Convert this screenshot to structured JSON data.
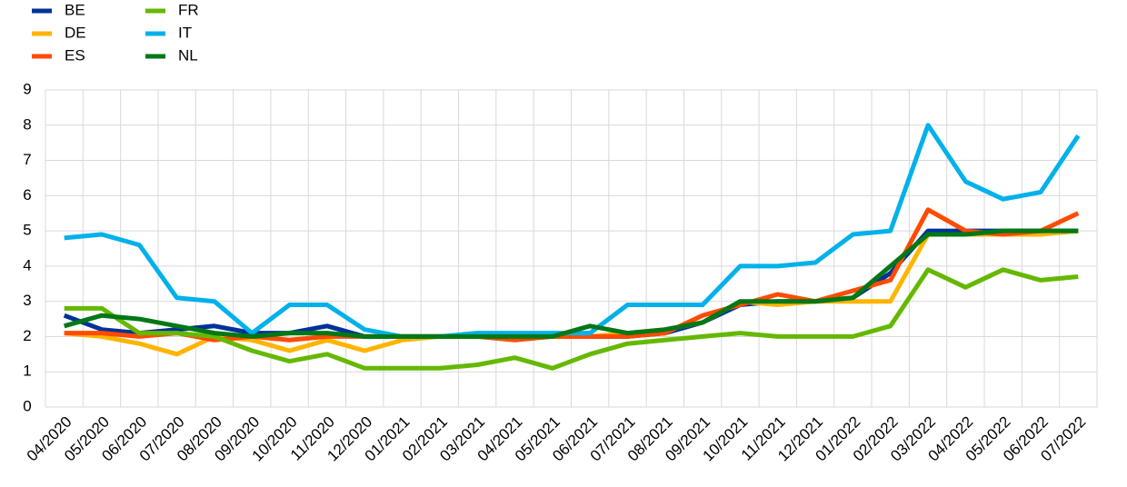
{
  "chart_data": {
    "type": "line",
    "categories": [
      "04/2020",
      "05/2020",
      "06/2020",
      "07/2020",
      "08/2020",
      "09/2020",
      "10/2020",
      "11/2020",
      "12/2020",
      "01/2021",
      "02/2021",
      "03/2021",
      "04/2021",
      "05/2021",
      "06/2021",
      "07/2021",
      "08/2021",
      "09/2021",
      "10/2021",
      "11/2021",
      "12/2021",
      "01/2022",
      "02/2022",
      "03/2022",
      "04/2022",
      "05/2022",
      "06/2022",
      "07/2022"
    ],
    "series": [
      {
        "name": "BE",
        "color": "#003299",
        "values": [
          2.6,
          2.2,
          2.1,
          2.2,
          2.3,
          2.1,
          2.1,
          2.3,
          2.0,
          2.0,
          2.0,
          2.0,
          2.0,
          2.0,
          2.0,
          2.0,
          2.1,
          2.4,
          2.9,
          3.0,
          3.0,
          3.1,
          3.8,
          5.0,
          5.0,
          5.0,
          5.0,
          5.0
        ]
      },
      {
        "name": "DE",
        "color": "#ffb400",
        "values": [
          2.1,
          2.0,
          1.8,
          1.5,
          2.0,
          1.9,
          1.6,
          1.9,
          1.6,
          1.9,
          2.0,
          2.0,
          2.0,
          2.0,
          2.0,
          2.1,
          2.2,
          2.4,
          3.0,
          2.9,
          3.0,
          3.0,
          3.0,
          4.9,
          4.9,
          4.9,
          4.9,
          5.0
        ]
      },
      {
        "name": "ES",
        "color": "#ff4b00",
        "values": [
          2.1,
          2.1,
          2.0,
          2.1,
          1.9,
          2.0,
          1.9,
          2.0,
          2.0,
          2.0,
          2.0,
          2.0,
          1.9,
          2.0,
          2.0,
          2.0,
          2.1,
          2.6,
          2.9,
          3.2,
          3.0,
          3.3,
          3.6,
          5.6,
          5.0,
          4.9,
          5.0,
          5.5
        ]
      },
      {
        "name": "FR",
        "color": "#65b800",
        "values": [
          2.8,
          2.8,
          2.1,
          2.1,
          2.0,
          1.6,
          1.3,
          1.5,
          1.1,
          1.1,
          1.1,
          1.2,
          1.4,
          1.1,
          1.5,
          1.8,
          1.9,
          2.0,
          2.1,
          2.0,
          2.0,
          2.0,
          2.3,
          3.9,
          3.4,
          3.9,
          3.6,
          3.7
        ]
      },
      {
        "name": "IT",
        "color": "#00b1ea",
        "values": [
          4.8,
          4.9,
          4.6,
          3.1,
          3.0,
          2.1,
          2.9,
          2.9,
          2.2,
          2.0,
          2.0,
          2.1,
          2.1,
          2.1,
          2.1,
          2.9,
          2.9,
          2.9,
          4.0,
          4.0,
          4.1,
          4.9,
          5.0,
          8.0,
          6.4,
          5.9,
          6.1,
          7.7
        ]
      },
      {
        "name": "NL",
        "color": "#007816",
        "values": [
          2.3,
          2.6,
          2.5,
          2.3,
          2.1,
          2.0,
          2.1,
          2.1,
          2.0,
          2.0,
          2.0,
          2.0,
          2.0,
          2.0,
          2.3,
          2.1,
          2.2,
          2.4,
          3.0,
          3.0,
          3.0,
          3.1,
          4.0,
          4.9,
          4.9,
          5.0,
          5.0,
          5.0
        ]
      }
    ],
    "ylim": [
      0,
      9
    ],
    "yticks": [
      0,
      1,
      2,
      3,
      4,
      5,
      6,
      7,
      8,
      9
    ],
    "grid": true,
    "legend": "top-left"
  }
}
